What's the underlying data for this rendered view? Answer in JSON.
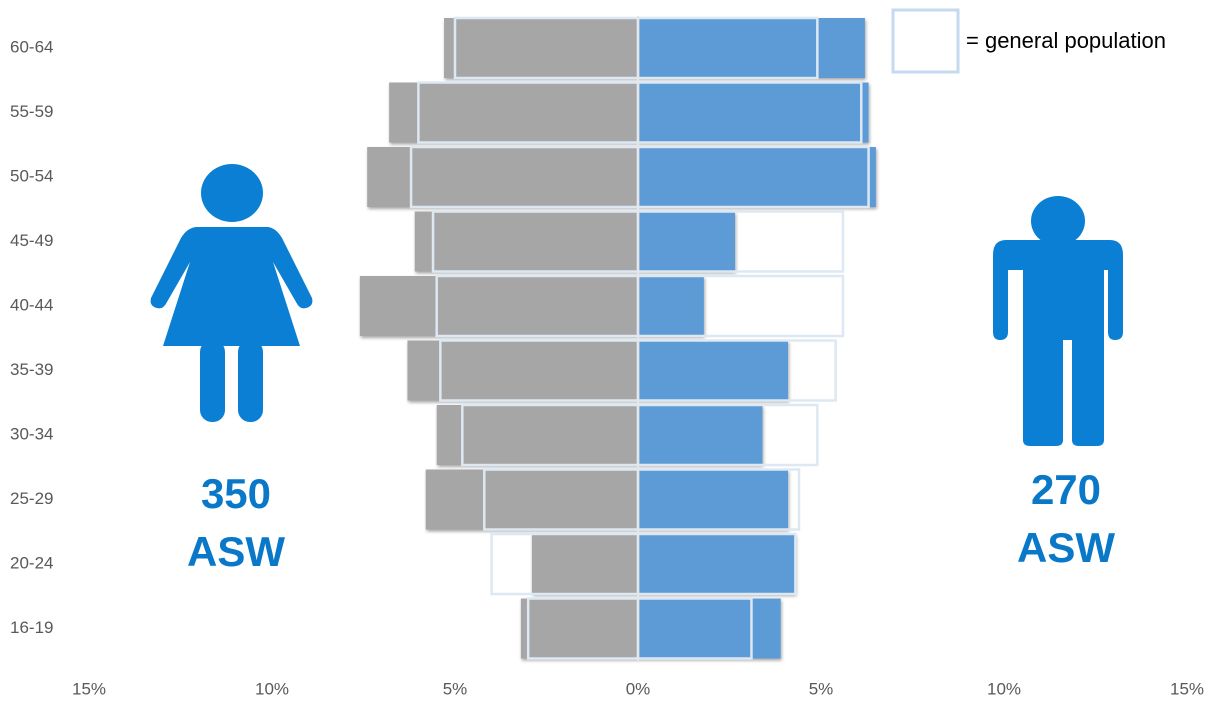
{
  "chart_data": {
    "type": "pyramid",
    "categories": [
      "60-64",
      "55-59",
      "50-54",
      "45-49",
      "40-44",
      "35-39",
      "30-34",
      "25-29",
      "20-24",
      "16-19"
    ],
    "series": [
      {
        "color": "#a6a6a6",
        "style": "filled",
        "values": [
          -5.3,
          -6.8,
          -7.4,
          -6.1,
          -7.6,
          -6.3,
          -5.5,
          -5.8,
          -2.9,
          -3.2
        ]
      },
      {
        "color": "#5b9bd5",
        "style": "filled",
        "values": [
          6.2,
          6.3,
          6.5,
          2.65,
          1.8,
          4.1,
          3.4,
          4.1,
          4.3,
          3.9
        ]
      },
      {
        "color": "#dde8f3",
        "style": "outline",
        "values": [
          -5.0,
          -6.0,
          -6.2,
          -5.6,
          -5.5,
          -5.4,
          -4.8,
          -4.2,
          -4.0,
          -3.0
        ]
      },
      {
        "color": "#dde8f3",
        "style": "outline",
        "values": [
          4.9,
          6.1,
          6.3,
          5.6,
          5.6,
          5.4,
          4.9,
          4.4,
          4.3,
          3.1
        ]
      }
    ],
    "legend_label": "= general population",
    "annotations": [
      "350",
      "ASW",
      "270",
      "ASW"
    ],
    "annotation_color": "#0a78c8",
    "xlim": [
      -15,
      15
    ],
    "xticks": [
      {
        "value": -15,
        "label": "15%"
      },
      {
        "value": -10,
        "label": "10%"
      },
      {
        "value": -5,
        "label": "5%"
      },
      {
        "value": 0,
        "label": "0%"
      },
      {
        "value": 5,
        "label": "5%"
      },
      {
        "value": 10,
        "label": "10%"
      },
      {
        "value": 15,
        "label": "15%"
      }
    ]
  }
}
